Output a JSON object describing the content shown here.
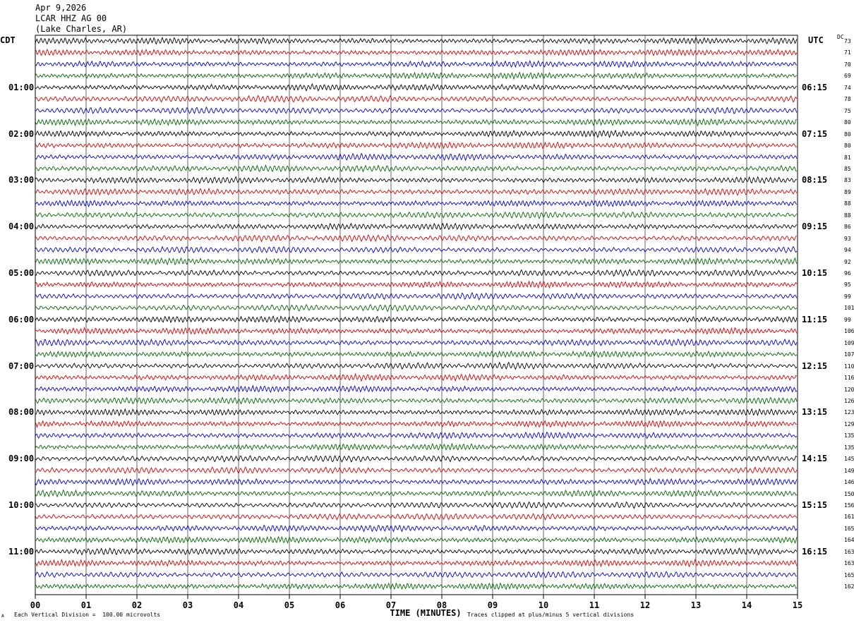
{
  "header": {
    "date": "Apr 9,2026",
    "station": "LCAR HHZ AG 00",
    "location": "(Lake Charles, AR)"
  },
  "left_axis_label": "CDT",
  "right_axis_label": "UTC",
  "dc_label": "DC",
  "footer": {
    "scale_note": "Each Vertical Division =  100.00 microvolts",
    "clip_note": "Traces clipped at plus/minus 5 vertical divisions",
    "corner_mark": "A"
  },
  "colors": {
    "cycle": [
      "#000000",
      "#d40000",
      "#0000cc",
      "#006600"
    ],
    "grid": "#000000"
  },
  "chart_data": {
    "type": "line",
    "xlabel": "TIME (MINUTES)",
    "xlim": [
      0,
      15
    ],
    "x_ticks": [
      "00",
      "01",
      "02",
      "03",
      "04",
      "05",
      "06",
      "07",
      "08",
      "09",
      "10",
      "11",
      "12",
      "13",
      "14",
      "15"
    ],
    "traces_per_hour": 4,
    "trace_count": 48,
    "left_hour_labels": [
      "01:00",
      "02:00",
      "03:00",
      "04:00",
      "05:00",
      "06:00",
      "07:00",
      "08:00",
      "09:00",
      "10:00",
      "11:00"
    ],
    "right_hour_labels": [
      "06:15",
      "07:15",
      "08:15",
      "09:15",
      "10:15",
      "11:15",
      "12:15",
      "13:15",
      "14:15",
      "15:15",
      "16:15"
    ],
    "dc_offsets": [
      "73",
      "71",
      "70",
      "69",
      "74",
      "78",
      "75",
      "80",
      "80",
      "80",
      "81",
      "85",
      "83",
      "89",
      "88",
      "88",
      "86",
      "93",
      "94",
      "92",
      "96",
      "95",
      "99",
      "101",
      "99",
      "106",
      "109",
      "107",
      "110",
      "116",
      "120",
      "126",
      "123",
      "129",
      "135",
      "135",
      "145",
      "149",
      "146",
      "150",
      "156",
      "161",
      "165",
      "164",
      "163",
      "163",
      "165",
      "162"
    ]
  }
}
